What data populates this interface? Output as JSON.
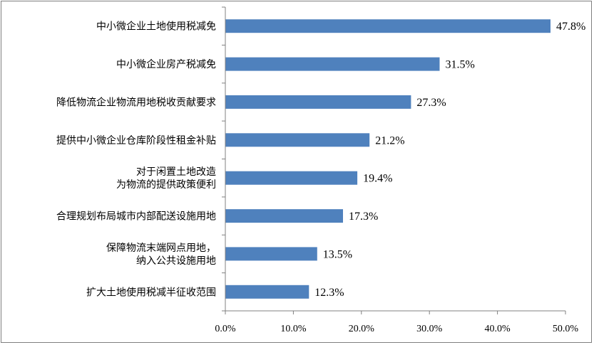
{
  "chart_data": {
    "type": "bar",
    "orientation": "horizontal",
    "categories": [
      [
        "中小微企业土地使用税减免"
      ],
      [
        "中小微企业房产税减免"
      ],
      [
        "降低物流企业物流用地税收贡献要求"
      ],
      [
        "提供中小微企业仓库阶段性租金补贴"
      ],
      [
        "对于闲置土地改造",
        "为物流的提供政策便利"
      ],
      [
        "合理规划布局城市内部配送设施用地"
      ],
      [
        "保障物流末端网点用地，",
        "纳入公共设施用地"
      ],
      [
        "扩大土地使用税减半征收范围"
      ]
    ],
    "values": [
      47.8,
      31.5,
      27.3,
      21.2,
      19.4,
      17.3,
      13.5,
      12.3
    ],
    "value_labels": [
      "47.8%",
      "31.5%",
      "27.3%",
      "21.2%",
      "19.4%",
      "17.3%",
      "13.5%",
      "12.3%"
    ],
    "xlim": [
      0,
      50
    ],
    "x_ticks": [
      0,
      10,
      20,
      30,
      40,
      50
    ],
    "x_tick_labels": [
      "0.0%",
      "10.0%",
      "20.0%",
      "30.0%",
      "40.0%",
      "50.0%"
    ],
    "bar_color": "#4f81bd",
    "grid": false,
    "title": "",
    "xlabel": "",
    "ylabel": ""
  }
}
